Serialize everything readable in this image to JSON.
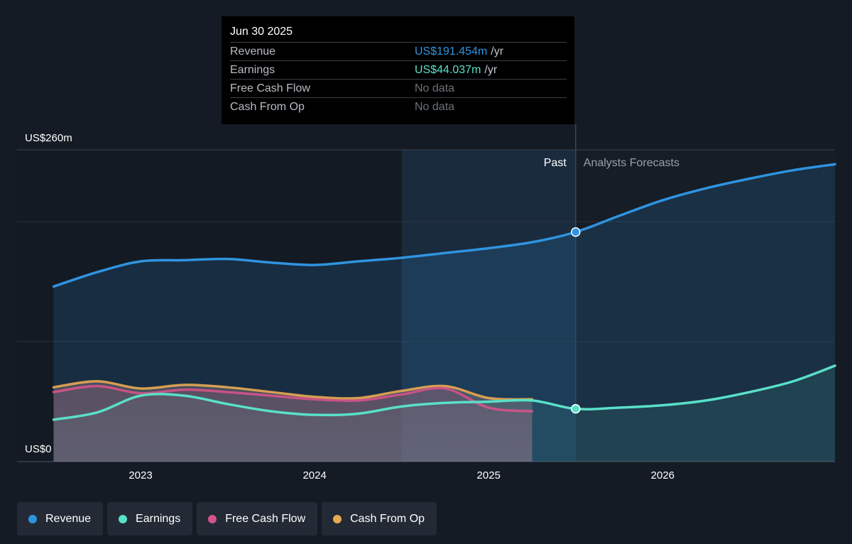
{
  "tooltip": {
    "date": "Jun 30 2025",
    "rows": [
      {
        "label": "Revenue",
        "value": "US$191.454m",
        "unit": "/yr",
        "color": "#2f94e0",
        "has_data": true
      },
      {
        "label": "Earnings",
        "value": "US$44.037m",
        "unit": "/yr",
        "color": "#59e0c8",
        "has_data": true
      },
      {
        "label": "Free Cash Flow",
        "value": "No data",
        "unit": "",
        "color": "#6d727a",
        "has_data": false
      },
      {
        "label": "Cash From Op",
        "value": "No data",
        "unit": "",
        "color": "#6d727a",
        "has_data": false
      }
    ]
  },
  "legend": [
    {
      "label": "Revenue",
      "color": "#2f94e0"
    },
    {
      "label": "Earnings",
      "color": "#59e0c8"
    },
    {
      "label": "Free Cash Flow",
      "color": "#d4538a"
    },
    {
      "label": "Cash From Op",
      "color": "#e8a952"
    }
  ],
  "chart_data": {
    "type": "area",
    "y_axis": {
      "top_label": "US$260m",
      "bottom_label": "US$0",
      "ylim": [
        0,
        260
      ]
    },
    "x_ticks": [
      {
        "label": "2023",
        "x": 2023.0
      },
      {
        "label": "2024",
        "x": 2024.0
      },
      {
        "label": "2025",
        "x": 2025.0
      },
      {
        "label": "2026",
        "x": 2026.0
      }
    ],
    "xlim": [
      2022.29,
      2026.99
    ],
    "past_label": "Past",
    "forecast_label": "Analysts Forecasts",
    "divider_x": 2025.5,
    "highlight_start_x": 2024.5,
    "series": [
      {
        "name": "Revenue",
        "color": "#2f94e0",
        "points": [
          [
            2022.5,
            146
          ],
          [
            2022.75,
            158
          ],
          [
            2023.0,
            167
          ],
          [
            2023.25,
            168
          ],
          [
            2023.5,
            169
          ],
          [
            2023.75,
            166
          ],
          [
            2024.0,
            164
          ],
          [
            2024.25,
            167
          ],
          [
            2024.5,
            170
          ],
          [
            2024.75,
            174
          ],
          [
            2025.0,
            178
          ],
          [
            2025.25,
            183
          ],
          [
            2025.5,
            191.454
          ],
          [
            2025.75,
            205
          ],
          [
            2026.0,
            218
          ],
          [
            2026.25,
            228
          ],
          [
            2026.5,
            236
          ],
          [
            2026.75,
            243
          ],
          [
            2026.99,
            248
          ]
        ]
      },
      {
        "name": "Earnings",
        "color": "#59e0c8",
        "points": [
          [
            2022.5,
            35
          ],
          [
            2022.75,
            41
          ],
          [
            2023.0,
            55
          ],
          [
            2023.25,
            55
          ],
          [
            2023.5,
            48
          ],
          [
            2023.75,
            42
          ],
          [
            2024.0,
            39
          ],
          [
            2024.25,
            40
          ],
          [
            2024.5,
            46
          ],
          [
            2024.75,
            49
          ],
          [
            2025.0,
            50
          ],
          [
            2025.25,
            51
          ],
          [
            2025.5,
            44.037
          ],
          [
            2025.75,
            45
          ],
          [
            2026.0,
            47
          ],
          [
            2026.25,
            51
          ],
          [
            2026.5,
            58
          ],
          [
            2026.75,
            67
          ],
          [
            2026.99,
            80
          ]
        ]
      },
      {
        "name": "Free Cash Flow",
        "color": "#d4538a",
        "points": [
          [
            2022.5,
            58
          ],
          [
            2022.75,
            63
          ],
          [
            2023.0,
            57
          ],
          [
            2023.25,
            60
          ],
          [
            2023.5,
            58
          ],
          [
            2023.75,
            55
          ],
          [
            2024.0,
            52
          ],
          [
            2024.25,
            51
          ],
          [
            2024.5,
            56
          ],
          [
            2024.75,
            61
          ],
          [
            2025.0,
            45
          ],
          [
            2025.25,
            42
          ]
        ]
      },
      {
        "name": "Cash From Op",
        "color": "#e8a952",
        "points": [
          [
            2022.5,
            62
          ],
          [
            2022.75,
            67
          ],
          [
            2023.0,
            61
          ],
          [
            2023.25,
            64
          ],
          [
            2023.5,
            62
          ],
          [
            2023.75,
            58
          ],
          [
            2024.0,
            54
          ],
          [
            2024.25,
            53
          ],
          [
            2024.5,
            59
          ],
          [
            2024.75,
            63
          ],
          [
            2025.0,
            53
          ],
          [
            2025.25,
            52
          ]
        ]
      }
    ],
    "markers": [
      {
        "series": "Revenue",
        "x": 2025.5,
        "y": 191.454
      },
      {
        "series": "Earnings",
        "x": 2025.5,
        "y": 44.037
      }
    ]
  }
}
